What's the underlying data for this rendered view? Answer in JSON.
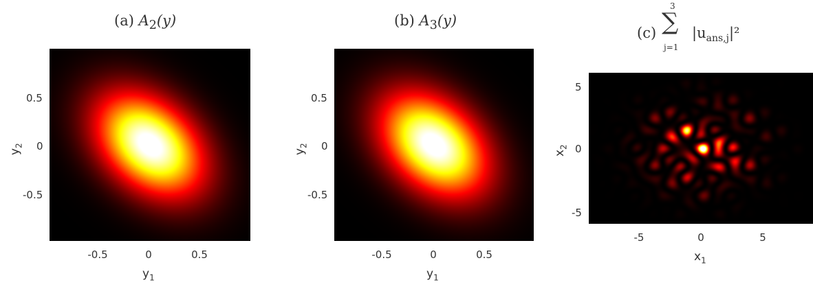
{
  "chart_data": [
    {
      "type": "heatmap",
      "title": "(a) A₂(y)",
      "title_prefix": "(a)",
      "title_math": "A",
      "title_sub": "2",
      "title_arg": "(y)",
      "xlabel": "y",
      "xlabel_sub": "1",
      "ylabel": "y",
      "ylabel_sub": "2",
      "xlim": [
        -0.95,
        0.95
      ],
      "ylim": [
        -0.95,
        0.95
      ],
      "xticks": [
        "-0.5",
        "0",
        "0.5"
      ],
      "xtick_values": [
        -0.5,
        0,
        0.5
      ],
      "yticks": [
        "0.5",
        "0",
        "-0.5"
      ],
      "ytick_values": [
        0.5,
        0,
        -0.5
      ],
      "colormap": "hot",
      "peak_location": [
        0,
        0
      ],
      "distribution": "tilted elliptical gaussian, major axis along negative slope"
    },
    {
      "type": "heatmap",
      "title": "(b) A₃(y)",
      "title_prefix": "(b)",
      "title_math": "A",
      "title_sub": "3",
      "title_arg": "(y)",
      "xlabel": "y",
      "xlabel_sub": "1",
      "ylabel": "y",
      "ylabel_sub": "2",
      "xlim": [
        -0.95,
        0.95
      ],
      "ylim": [
        -0.95,
        0.95
      ],
      "xticks": [
        "-0.5",
        "0",
        "0.5"
      ],
      "xtick_values": [
        -0.5,
        0,
        0.5
      ],
      "yticks": [
        "0.5",
        "0",
        "-0.5"
      ],
      "ytick_values": [
        0.5,
        0,
        -0.5
      ],
      "colormap": "hot",
      "peak_location": [
        0,
        0
      ],
      "distribution": "tilted elliptical gaussian, major axis along negative slope"
    },
    {
      "type": "heatmap",
      "title": "(c) Σ_{j=1}^{3} |u_{ans,j}|²",
      "title_prefix": "(c)",
      "sum_upper": "3",
      "sum_lower": "j=1",
      "term": "|u",
      "term_sub": "ans,j",
      "term_end": "|²",
      "xlabel": "x",
      "xlabel_sub": "1",
      "ylabel": "x",
      "ylabel_sub": "2",
      "xlim": [
        -9,
        9
      ],
      "ylim": [
        -6,
        6
      ],
      "xticks": [
        "-5",
        "0",
        "5"
      ],
      "xtick_values": [
        -5,
        0,
        5
      ],
      "yticks": [
        "5",
        "0",
        "-5"
      ],
      "ytick_values": [
        5,
        0,
        -5
      ],
      "colormap": "hot",
      "distribution": "speckled lattice pattern concentrated near origin"
    }
  ],
  "colors": {
    "background": "#000000",
    "hot_low": "#000000",
    "hot_mid": "#ff2000",
    "hot_high": "#ffffe0"
  }
}
